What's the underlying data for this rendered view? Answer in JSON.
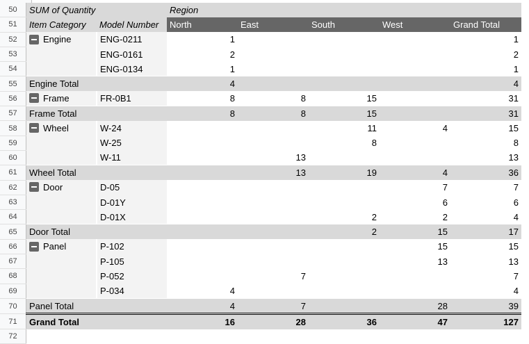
{
  "pivot": {
    "value_label": "SUM of Quantity",
    "column_field": "Region",
    "row_fields": [
      "Item Category",
      "Model Number"
    ],
    "columns": [
      "North",
      "East",
      "South",
      "West",
      "Grand Total"
    ],
    "header_row_numbers": [
      "50",
      "51"
    ],
    "groups": [
      {
        "category": "Engine",
        "total_label": "Engine Total",
        "rows": [
          {
            "row": "52",
            "model": "ENG-0211",
            "values": [
              "1",
              "",
              "",
              "",
              "1"
            ]
          },
          {
            "row": "53",
            "model": "ENG-0161",
            "values": [
              "2",
              "",
              "",
              "",
              "2"
            ]
          },
          {
            "row": "54",
            "model": "ENG-0134",
            "values": [
              "1",
              "",
              "",
              "",
              "1"
            ]
          }
        ],
        "total_row": "55",
        "totals": [
          "4",
          "",
          "",
          "",
          "4"
        ]
      },
      {
        "category": "Frame",
        "total_label": "Frame Total",
        "rows": [
          {
            "row": "56",
            "model": "FR-0B1",
            "values": [
              "8",
              "8",
              "15",
              "",
              "31"
            ]
          }
        ],
        "total_row": "57",
        "totals": [
          "8",
          "8",
          "15",
          "",
          "31"
        ]
      },
      {
        "category": "Wheel",
        "total_label": "Wheel Total",
        "rows": [
          {
            "row": "58",
            "model": "W-24",
            "values": [
              "",
              "",
              "11",
              "4",
              "15"
            ]
          },
          {
            "row": "59",
            "model": "W-25",
            "values": [
              "",
              "",
              "8",
              "",
              "8"
            ]
          },
          {
            "row": "60",
            "model": "W-11",
            "values": [
              "",
              "13",
              "",
              "",
              "13"
            ]
          }
        ],
        "total_row": "61",
        "totals": [
          "",
          "13",
          "19",
          "4",
          "36"
        ]
      },
      {
        "category": "Door",
        "total_label": "Door Total",
        "rows": [
          {
            "row": "62",
            "model": "D-05",
            "values": [
              "",
              "",
              "",
              "7",
              "7"
            ]
          },
          {
            "row": "63",
            "model": "D-01Y",
            "values": [
              "",
              "",
              "",
              "6",
              "6"
            ]
          },
          {
            "row": "64",
            "model": "D-01X",
            "values": [
              "",
              "",
              "2",
              "2",
              "4"
            ]
          }
        ],
        "total_row": "65",
        "totals": [
          "",
          "",
          "2",
          "15",
          "17"
        ]
      },
      {
        "category": "Panel",
        "total_label": "Panel Total",
        "rows": [
          {
            "row": "66",
            "model": "P-102",
            "values": [
              "",
              "",
              "",
              "15",
              "15"
            ]
          },
          {
            "row": "67",
            "model": "P-105",
            "values": [
              "",
              "",
              "",
              "13",
              "13"
            ]
          },
          {
            "row": "68",
            "model": "P-052",
            "values": [
              "",
              "7",
              "",
              "",
              "7"
            ]
          },
          {
            "row": "69",
            "model": "P-034",
            "values": [
              "4",
              "",
              "",
              "",
              "4"
            ]
          }
        ],
        "total_row": "70",
        "totals": [
          "4",
          "7",
          "",
          "28",
          "39"
        ]
      }
    ],
    "grand_total": {
      "row": "71",
      "label": "Grand Total",
      "values": [
        "16",
        "28",
        "36",
        "47",
        "127"
      ]
    },
    "next_row": "72"
  },
  "colors": {
    "header_dark": "#666666",
    "total_bg": "#d9d9d9",
    "category_bg": "#f3f3f3"
  }
}
